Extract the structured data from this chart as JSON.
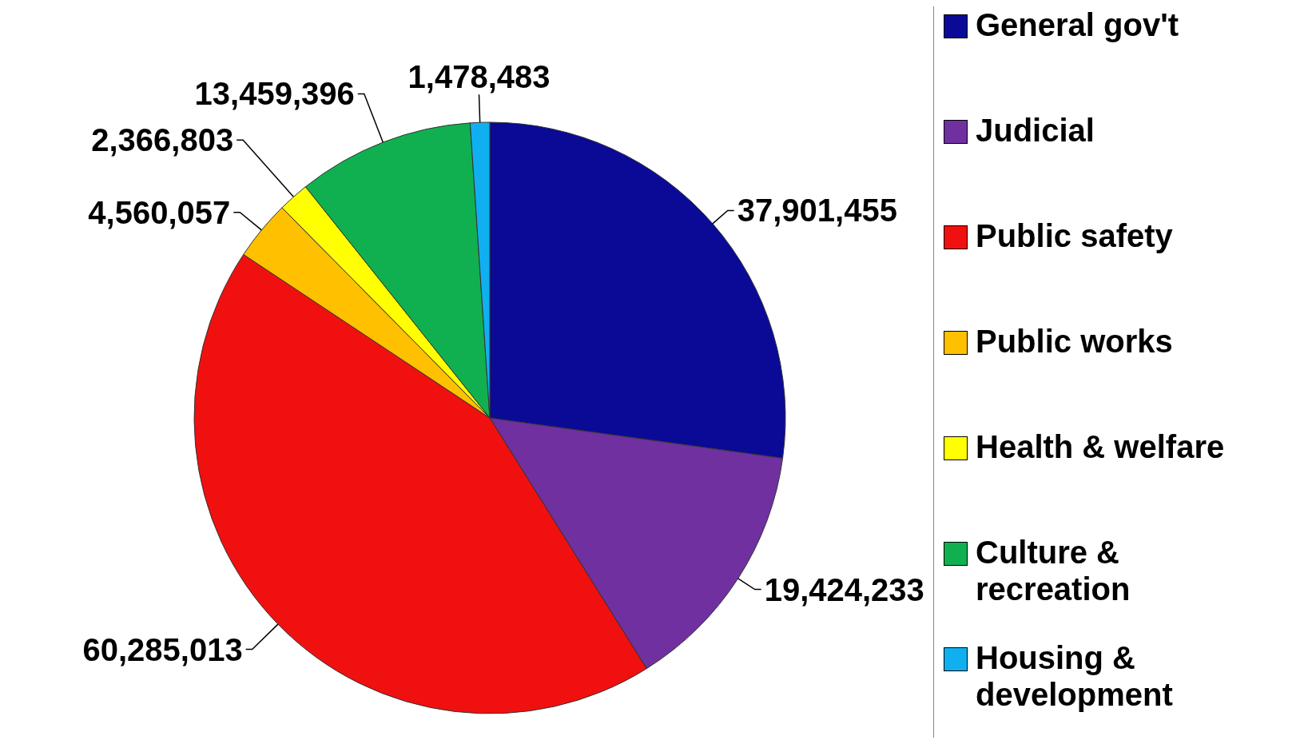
{
  "chart_data": {
    "type": "pie",
    "categories": [
      "General gov't",
      "Judicial",
      "Public safety",
      "Public works",
      "Health & welfare",
      "Culture & recreation",
      "Housing & development"
    ],
    "values": [
      37901455,
      19424233,
      60285013,
      4560057,
      2366803,
      13459396,
      1478483
    ],
    "colors": [
      "#0a0a96",
      "#7030a0",
      "#f01010",
      "#ffc000",
      "#ffff00",
      "#10b050",
      "#10b0f0"
    ],
    "value_labels": [
      "37,901,455",
      "19,424,233",
      "60,285,013",
      "4,560,057",
      "2,366,803",
      "13,459,396",
      "1,478,483"
    ],
    "legend": "right"
  }
}
